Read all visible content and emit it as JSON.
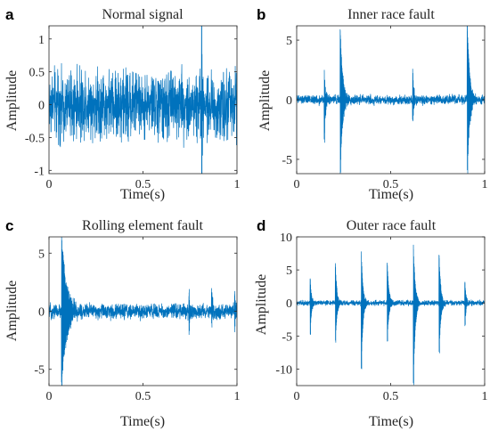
{
  "chart_data": [
    {
      "type": "line",
      "letter": "a",
      "title": "Normal signal",
      "xlabel": "Time(s)",
      "ylabel": "Amplitude",
      "xlim": [
        0,
        1
      ],
      "ylim": [
        -1.05,
        1.2
      ],
      "xticks": [
        0,
        0.5,
        1
      ],
      "xtick_labels": [
        "0",
        "0.5",
        "1"
      ],
      "yticks": [
        -1,
        -0.5,
        0,
        0.5,
        1
      ],
      "ytick_labels": [
        "-1",
        "-0.5",
        "0",
        "0.5",
        "1"
      ],
      "series": [
        {
          "color": "#0072BD",
          "signal_model": {
            "noise_amplitude": 0.23,
            "noise_extreme": 0.6,
            "impulses": [
              {
                "t": 0.812,
                "peak": 1.2,
                "trough": -1.05,
                "decay": 0.004
              }
            ]
          }
        }
      ]
    },
    {
      "type": "line",
      "letter": "b",
      "title": "Inner race fault",
      "xlabel": "Time(s)",
      "ylabel": "Amplitude",
      "xlim": [
        0,
        1
      ],
      "ylim": [
        -6.2,
        6.2
      ],
      "xticks": [
        0,
        0.5,
        1
      ],
      "xtick_labels": [
        "0",
        "0.5",
        "1"
      ],
      "yticks": [
        -5,
        0,
        5
      ],
      "ytick_labels": [
        "-5",
        "0",
        "5"
      ],
      "series": [
        {
          "color": "#0072BD",
          "signal_model": {
            "noise_amplitude": 0.18,
            "noise_extreme": 0.35,
            "impulses": [
              {
                "t": 0.147,
                "peak": 2.5,
                "trough": -3.6,
                "decay": 0.006
              },
              {
                "t": 0.232,
                "peak": 5.8,
                "trough": -6.1,
                "decay": 0.012
              },
              {
                "t": 0.617,
                "peak": 2.6,
                "trough": -1.8,
                "decay": 0.006
              },
              {
                "t": 0.908,
                "peak": 6.2,
                "trough": -6.2,
                "decay": 0.012
              }
            ]
          }
        }
      ]
    },
    {
      "type": "line",
      "letter": "c",
      "title": "Rolling element fault",
      "xlabel": "Time(s)",
      "ylabel": "Amplitude",
      "xlim": [
        0,
        1
      ],
      "ylim": [
        -6.4,
        6.4
      ],
      "xticks": [
        0,
        0.5,
        1
      ],
      "xtick_labels": [
        "0",
        "0.5",
        "1"
      ],
      "yticks": [
        -5,
        0,
        5
      ],
      "ytick_labels": [
        "-5",
        "0",
        "5"
      ],
      "series": [
        {
          "color": "#0072BD",
          "signal_model": {
            "noise_amplitude": 0.3,
            "noise_extreme": 0.6,
            "impulses": [
              {
                "t": 0.067,
                "peak": 6.4,
                "trough": -6.4,
                "decay": 0.025
              },
              {
                "t": 0.745,
                "peak": 1.6,
                "trough": -1.7,
                "decay": 0.006
              },
              {
                "t": 0.865,
                "peak": 1.5,
                "trough": -1.4,
                "decay": 0.005
              },
              {
                "t": 0.988,
                "peak": 1.5,
                "trough": -1.3,
                "decay": 0.005
              }
            ]
          }
        }
      ]
    },
    {
      "type": "line",
      "letter": "d",
      "title": "Outer race fault",
      "xlabel": "Time(s)",
      "ylabel": "Amplitude",
      "xlim": [
        0,
        1
      ],
      "ylim": [
        -12.5,
        10
      ],
      "xticks": [
        0,
        0.5,
        1
      ],
      "xtick_labels": [
        "0",
        "0.5",
        "1"
      ],
      "yticks": [
        -10,
        -5,
        0,
        5,
        10
      ],
      "ytick_labels": [
        "-10",
        "-5",
        "0",
        "5",
        "10"
      ],
      "series": [
        {
          "color": "#0072BD",
          "signal_model": {
            "noise_amplitude": 0.18,
            "noise_extreme": 0.4,
            "impulses": [
              {
                "t": 0.072,
                "peak": 3.7,
                "trough": -4.8,
                "decay": 0.006
              },
              {
                "t": 0.206,
                "peak": 5.7,
                "trough": -6.0,
                "decay": 0.008
              },
              {
                "t": 0.344,
                "peak": 7.8,
                "trough": -10.0,
                "decay": 0.008
              },
              {
                "t": 0.482,
                "peak": 6.1,
                "trough": -5.8,
                "decay": 0.008
              },
              {
                "t": 0.621,
                "peak": 8.8,
                "trough": -12.4,
                "decay": 0.009
              },
              {
                "t": 0.758,
                "peak": 7.2,
                "trough": -7.6,
                "decay": 0.008
              },
              {
                "t": 0.895,
                "peak": 3.2,
                "trough": -3.3,
                "decay": 0.006
              }
            ]
          }
        }
      ]
    }
  ]
}
